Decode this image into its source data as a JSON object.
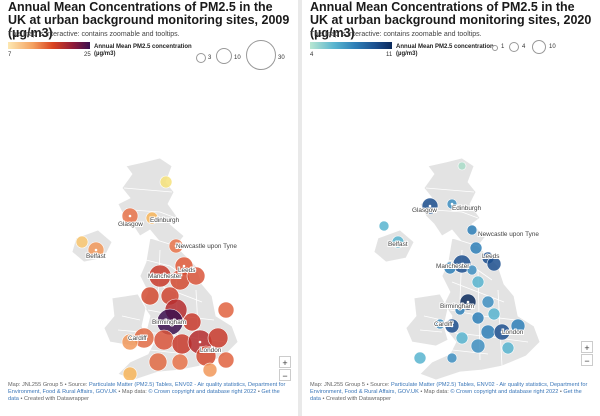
{
  "left": {
    "title": "Annual Mean Concentrations of PM2.5 in the UK at urban background monitoring sites, 2009 (µg/m3)",
    "subtitle": "This map is interactive: contains zoomable and tooltips.",
    "ramp": {
      "min": "7",
      "max": "25",
      "colors": [
        "#fde8b2",
        "#f4a261",
        "#d9431f",
        "#8e1b3a",
        "#3b0f4e"
      ]
    },
    "legend_title": "Annual Mean PM2.5 concentration (µg/m3)",
    "sizes": [
      "3",
      "10",
      "30"
    ],
    "cities": [
      "Edinburgh",
      "Glasgow",
      "Newcastle upon Tyne",
      "Belfast",
      "Leeds",
      "Manchester",
      "Birmingham",
      "Cardiff",
      "London"
    ],
    "footer_prefix": "Map: JNL255 Group 5 • Source: ",
    "footer_link1": "Particulate Matter (PM2.5) Tables, ENV02 - Air quality statistics, Department for Environment, Food & Rural Affairs, GOV.UK",
    "footer_mid": " • Map data: ",
    "footer_link2": "© Crown copyright and database right 2022",
    "footer_sep": " • ",
    "footer_link3": "Get the data",
    "footer_suffix": " • Created with Datawrapper",
    "zoom_in": "+",
    "zoom_out": "−"
  },
  "right": {
    "title": "Annual Mean Concentrations of PM2.5 in the UK at urban background monitoring sites, 2020 (µg/m3)",
    "subtitle": "This map is interactive: contains zoomable and tooltips.",
    "ramp": {
      "min": "4",
      "max": "11",
      "colors": [
        "#b9e7d2",
        "#58b4cf",
        "#2e7fb7",
        "#1c4f8e",
        "#0b2a5c"
      ]
    },
    "legend_title": "Annual Mean PM2.5 concentration (µg/m3)",
    "sizes": [
      "1",
      "4",
      "10"
    ],
    "cities": [
      "Edinburgh",
      "Glasgow",
      "Newcastle upon Tyne",
      "Belfast",
      "Leeds",
      "Manchester",
      "Birmingham",
      "Cardiff",
      "London"
    ],
    "footer_prefix": "Map: JNL255 Group 5 • Source: ",
    "footer_link1": "Particulate Matter (PM2.5) Tables, ENV02 - Air quality statistics, Department for Environment, Food & Rural Affairs, GOV.UK",
    "footer_mid": " • Map data: ",
    "footer_link2": "© Crown copyright and database right 2022",
    "footer_sep": " • ",
    "footer_link3": "Get the data",
    "footer_suffix": " • Created with Datawrapper",
    "zoom_in": "+",
    "zoom_out": "−"
  }
}
